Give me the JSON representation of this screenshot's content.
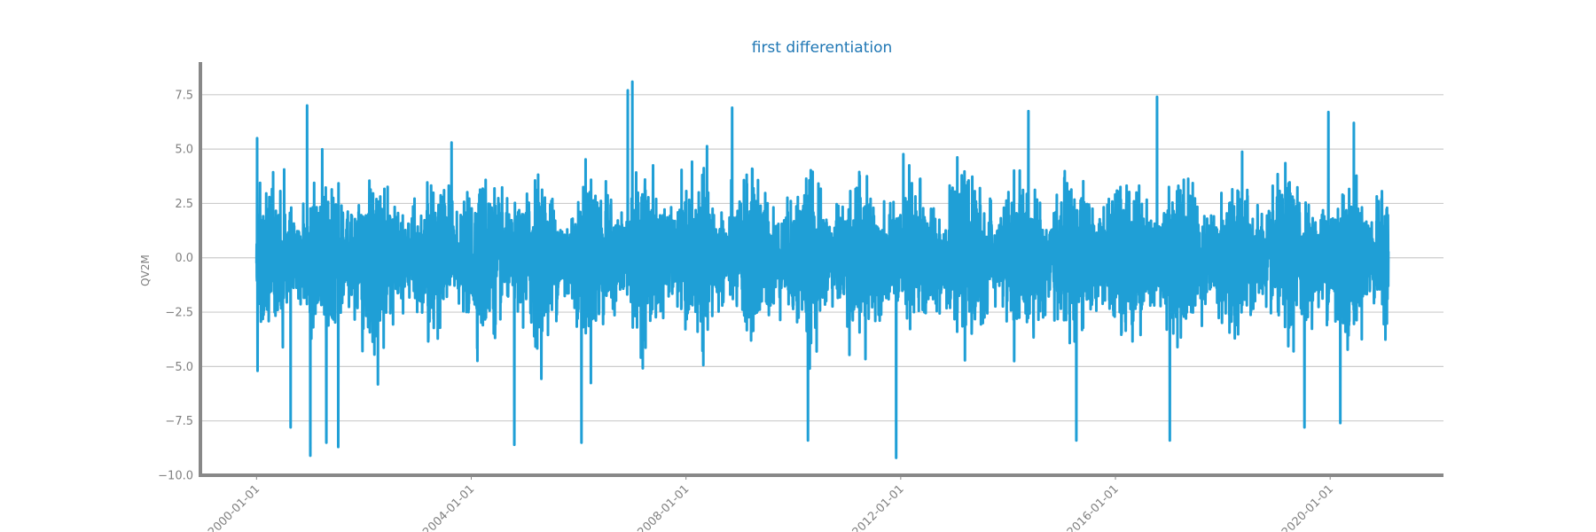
{
  "chart_data": {
    "type": "line",
    "title": "first differentiation",
    "xlabel": "",
    "ylabel": "QV2M",
    "color": "#1f9fd6",
    "grid_color": "#cccccc",
    "axis_color": "#888888",
    "title_color": "#1f77b4",
    "grid": "horizontal",
    "x_axis": {
      "type": "date",
      "range": [
        "1998-12-15",
        "2022-02-10"
      ],
      "tick_values": [
        "2000-01-01",
        "2004-01-01",
        "2008-01-01",
        "2012-01-01",
        "2016-01-01",
        "2020-01-01"
      ],
      "tick_labels": [
        "2000-01-01",
        "2004-01-01",
        "2008-01-01",
        "2012-01-01",
        "2016-01-01",
        "2020-01-01"
      ]
    },
    "y_axis": {
      "range": [
        -10.0,
        9.0
      ],
      "tick_values": [
        7.5,
        5.0,
        2.5,
        0.0,
        -2.5,
        -5.0,
        -7.5,
        -10.0
      ],
      "tick_labels": [
        "7.5",
        "5.0",
        "2.5",
        "0.0",
        "−2.5",
        "−5.0",
        "−7.5",
        "−10.0"
      ]
    },
    "series": [
      {
        "x_start": "2000-01-01",
        "x_end": "2021-01-31",
        "frequency": "daily",
        "value_range": [
          -9.2,
          8.1
        ],
        "typical_band": [
          -4.5,
          3.8
        ],
        "notable_values": [
          {
            "x": "2000-01-05",
            "y": 5.5
          },
          {
            "x": "2000-01-08",
            "y": -5.2
          },
          {
            "x": "2000-08-20",
            "y": -7.8
          },
          {
            "x": "2000-12-10",
            "y": 7.0
          },
          {
            "x": "2001-01-01",
            "y": -9.1
          },
          {
            "x": "2001-04-20",
            "y": -8.5
          },
          {
            "x": "2001-07-10",
            "y": -8.7
          },
          {
            "x": "2003-08-20",
            "y": 5.3
          },
          {
            "x": "2004-10-20",
            "y": -8.6
          },
          {
            "x": "2006-01-20",
            "y": -8.5
          },
          {
            "x": "2006-12-01",
            "y": 7.7
          },
          {
            "x": "2007-01-01",
            "y": 8.1
          },
          {
            "x": "2008-11-10",
            "y": 6.9
          },
          {
            "x": "2010-04-10",
            "y": -8.4
          },
          {
            "x": "2011-12-01",
            "y": -9.2
          },
          {
            "x": "2015-04-10",
            "y": -8.4
          },
          {
            "x": "2016-10-10",
            "y": 7.4
          },
          {
            "x": "2017-01-05",
            "y": -8.4
          },
          {
            "x": "2019-07-10",
            "y": -7.8
          },
          {
            "x": "2019-12-20",
            "y": 6.7
          },
          {
            "x": "2020-03-10",
            "y": -7.6
          },
          {
            "x": "2020-06-10",
            "y": 6.2
          }
        ]
      }
    ]
  }
}
